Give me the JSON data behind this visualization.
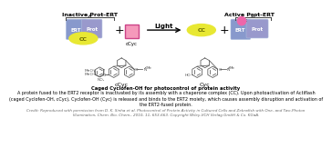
{
  "bg_color": "#ffffff",
  "title_inactive": "Inactive Prot-ERT",
  "title_active": "Active Prot-ERT",
  "light_label": "Light",
  "ccyc_label": "cCyc",
  "cyc_label": "Cyc",
  "cc_label": "CC",
  "ert_label": "ERT",
  "prot_label": "Prot",
  "caption_bold": "Caged Cyclofen-OH for photocontrol of protein activity",
  "caption_body": "A protein fused to the ERT2 receptor is inactivated by its assembly with a chaperone complex (CC). Upon photoactivation of Actiflash\n(caged Cyclofen-OH, cCyc), Cyclofen-OH (Cyc) is released and binds to the ERT2 moiety, which causes assembly disruption and activation of\nthe ERT2-fused protein.",
  "caption_credit": "Credit: Reproduced with permission from D. K. Sinha et al. Photocontrol of Protein Activity in Cultured Cells and Zebrafish with One- and Two-Photon\nIllumination, Chem. Bio. Chem., 2010, 11, 653-663. Copyright Wiley-VCH Verlag GmbH & Co. KGaA.",
  "ert_color": "#8899cc",
  "prot_color": "#9999cc",
  "cc_color": "#e8e833",
  "ccyc_color": "#f599bb",
  "cyc_dot_color": "#ee66aa",
  "arrow_color": "#000000",
  "plus_color": "#000000",
  "brace_color": "#444444",
  "text_color": "#000000",
  "struct_color": "#555555",
  "label_font_size": 5.0,
  "caption_font_size": 3.5,
  "bold_font_size": 3.8,
  "credit_font_size": 3.0,
  "struct_font_size": 3.2
}
